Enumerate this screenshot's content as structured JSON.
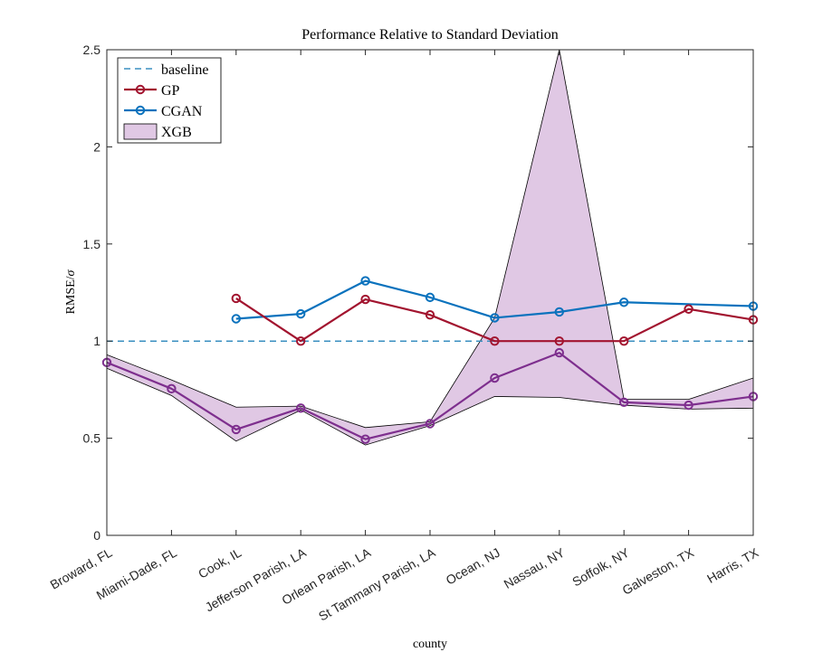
{
  "chart_data": {
    "type": "line",
    "title": "Performance Relative to Standard Deviation",
    "xlabel": "county",
    "ylabel_text": "RMSE/",
    "ylabel_symbol": "σ",
    "ylim": [
      0,
      2.5
    ],
    "yticks": [
      0,
      0.5,
      1,
      1.5,
      2,
      2.5
    ],
    "ytick_labels": [
      "0",
      "0.5",
      "1",
      "1.5",
      "2",
      "2.5"
    ],
    "categories": [
      "Broward, FL",
      "Miami-Dade, FL",
      "Cook, IL",
      "Jefferson Parish, LA",
      "Orlean Parish, LA",
      "St Tammany Parish, LA",
      "Ocean, NJ",
      "Nassau, NY",
      "Soffolk, NY",
      "Galveston, TX",
      "Harris, TX"
    ],
    "legend_position": "top-left",
    "baseline": {
      "name": "baseline",
      "value": 1.0,
      "color": "#3a8fc0"
    },
    "series": [
      {
        "name": "GP",
        "color": "#a2142f",
        "values": [
          null,
          null,
          1.22,
          1.0,
          1.215,
          1.135,
          1.0,
          1.0,
          1.0,
          1.165,
          1.11
        ]
      },
      {
        "name": "CGAN",
        "color": "#0a72bd",
        "values": [
          null,
          null,
          1.115,
          1.14,
          1.31,
          1.225,
          1.12,
          1.15,
          1.2,
          null,
          1.18
        ]
      },
      {
        "name": "XGB",
        "color": "#7e2f8e",
        "fill": "#e0c8e4",
        "values": [
          0.89,
          0.755,
          0.545,
          0.655,
          0.495,
          0.575,
          0.81,
          0.94,
          0.685,
          0.67,
          0.715
        ],
        "upper": [
          0.93,
          0.8,
          0.66,
          0.665,
          0.555,
          0.585,
          1.12,
          2.5,
          0.7,
          0.7,
          0.81
        ],
        "lower": [
          0.86,
          0.72,
          0.485,
          0.645,
          0.465,
          0.565,
          0.715,
          0.71,
          0.67,
          0.65,
          0.655
        ]
      }
    ],
    "cgan_segment_points": [
      {
        "category_index": 9,
        "value": 1.19
      }
    ]
  }
}
